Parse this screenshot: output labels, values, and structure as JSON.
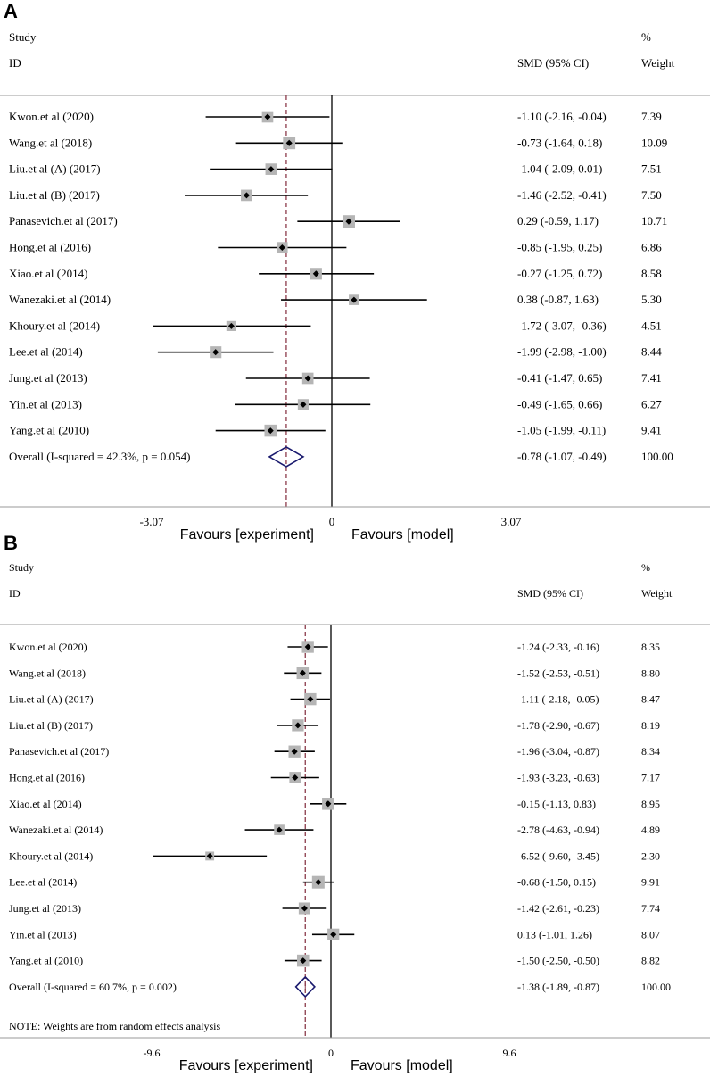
{
  "panels": [
    {
      "letter": "A",
      "headers": {
        "study": "Study",
        "id": "ID",
        "smd": "SMD (95% CI)",
        "pct": "%",
        "weight": "Weight"
      },
      "note": "",
      "axis": {
        "left_label": "-3.07",
        "zero_label": "0",
        "right_label": "3.07",
        "favours_left": "Favours [experiment]",
        "favours_right": "Favours [model]"
      },
      "chart_data": {
        "type": "forest",
        "title": "A",
        "xlim": [
          -3.07,
          3.07
        ],
        "ticks": [
          -3.07,
          0,
          3.07
        ],
        "pooled_line": -0.78,
        "studies": [
          {
            "label": "Kwon.et al (2020)",
            "est": -1.1,
            "lo": -2.16,
            "hi": -0.04,
            "ci_text": "-1.10 (-2.16, -0.04)",
            "weight": 7.39,
            "weight_text": "7.39"
          },
          {
            "label": "Wang.et al (2018)",
            "est": -0.73,
            "lo": -1.64,
            "hi": 0.18,
            "ci_text": "-0.73 (-1.64, 0.18)",
            "weight": 10.09,
            "weight_text": "10.09"
          },
          {
            "label": "Liu.et al (A) (2017)",
            "est": -1.04,
            "lo": -2.09,
            "hi": 0.01,
            "ci_text": "-1.04 (-2.09, 0.01)",
            "weight": 7.51,
            "weight_text": "7.51"
          },
          {
            "label": "Liu.et al (B) (2017)",
            "est": -1.46,
            "lo": -2.52,
            "hi": -0.41,
            "ci_text": "-1.46 (-2.52, -0.41)",
            "weight": 7.5,
            "weight_text": "7.50"
          },
          {
            "label": "Panasevich.et al (2017)",
            "est": 0.29,
            "lo": -0.59,
            "hi": 1.17,
            "ci_text": "0.29 (-0.59, 1.17)",
            "weight": 10.71,
            "weight_text": "10.71"
          },
          {
            "label": "Hong.et al (2016)",
            "est": -0.85,
            "lo": -1.95,
            "hi": 0.25,
            "ci_text": "-0.85 (-1.95, 0.25)",
            "weight": 6.86,
            "weight_text": "6.86"
          },
          {
            "label": "Xiao.et al (2014)",
            "est": -0.27,
            "lo": -1.25,
            "hi": 0.72,
            "ci_text": "-0.27 (-1.25, 0.72)",
            "weight": 8.58,
            "weight_text": "8.58"
          },
          {
            "label": "Wanezaki.et al (2014)",
            "est": 0.38,
            "lo": -0.87,
            "hi": 1.63,
            "ci_text": "0.38 (-0.87, 1.63)",
            "weight": 5.3,
            "weight_text": "5.30"
          },
          {
            "label": "Khoury.et al (2014)",
            "est": -1.72,
            "lo": -3.07,
            "hi": -0.36,
            "ci_text": "-1.72 (-3.07, -0.36)",
            "weight": 4.51,
            "weight_text": "4.51"
          },
          {
            "label": "Lee.et al (2014)",
            "est": -1.99,
            "lo": -2.98,
            "hi": -1.0,
            "ci_text": "-1.99 (-2.98, -1.00)",
            "weight": 8.44,
            "weight_text": "8.44"
          },
          {
            "label": "Jung.et al (2013)",
            "est": -0.41,
            "lo": -1.47,
            "hi": 0.65,
            "ci_text": "-0.41 (-1.47, 0.65)",
            "weight": 7.41,
            "weight_text": "7.41"
          },
          {
            "label": "Yin.et al (2013)",
            "est": -0.49,
            "lo": -1.65,
            "hi": 0.66,
            "ci_text": "-0.49 (-1.65, 0.66)",
            "weight": 6.27,
            "weight_text": "6.27"
          },
          {
            "label": "Yang.et al (2010)",
            "est": -1.05,
            "lo": -1.99,
            "hi": -0.11,
            "ci_text": "-1.05 (-1.99, -0.11)",
            "weight": 9.41,
            "weight_text": "9.41"
          }
        ],
        "overall": {
          "label": "Overall  (I-squared = 42.3%, p = 0.054)",
          "est": -0.78,
          "lo": -1.07,
          "hi": -0.49,
          "ci_text": "-0.78 (-1.07, -0.49)",
          "weight_text": "100.00"
        }
      }
    },
    {
      "letter": "B",
      "headers": {
        "study": "Study",
        "id": "ID",
        "smd": "SMD (95% CI)",
        "pct": "%",
        "weight": "Weight"
      },
      "note": "NOTE: Weights are from random effects analysis",
      "axis": {
        "left_label": "-9.6",
        "zero_label": "0",
        "right_label": "9.6",
        "favours_left": "Favours [experiment]",
        "favours_right": "Favours [model]"
      },
      "chart_data": {
        "type": "forest",
        "title": "B",
        "xlim": [
          -9.6,
          9.6
        ],
        "ticks": [
          -9.6,
          0,
          9.6
        ],
        "pooled_line": -1.38,
        "studies": [
          {
            "label": "Kwon.et al (2020)",
            "est": -1.24,
            "lo": -2.33,
            "hi": -0.16,
            "ci_text": "-1.24 (-2.33, -0.16)",
            "weight": 8.35,
            "weight_text": "8.35"
          },
          {
            "label": "Wang.et al (2018)",
            "est": -1.52,
            "lo": -2.53,
            "hi": -0.51,
            "ci_text": "-1.52 (-2.53, -0.51)",
            "weight": 8.8,
            "weight_text": "8.80"
          },
          {
            "label": "Liu.et al (A) (2017)",
            "est": -1.11,
            "lo": -2.18,
            "hi": -0.05,
            "ci_text": "-1.11 (-2.18, -0.05)",
            "weight": 8.47,
            "weight_text": "8.47"
          },
          {
            "label": "Liu.et al (B) (2017)",
            "est": -1.78,
            "lo": -2.9,
            "hi": -0.67,
            "ci_text": "-1.78 (-2.90, -0.67)",
            "weight": 8.19,
            "weight_text": "8.19"
          },
          {
            "label": "Panasevich.et al (2017)",
            "est": -1.96,
            "lo": -3.04,
            "hi": -0.87,
            "ci_text": "-1.96 (-3.04, -0.87)",
            "weight": 8.34,
            "weight_text": "8.34"
          },
          {
            "label": "Hong.et al (2016)",
            "est": -1.93,
            "lo": -3.23,
            "hi": -0.63,
            "ci_text": "-1.93 (-3.23, -0.63)",
            "weight": 7.17,
            "weight_text": "7.17"
          },
          {
            "label": "Xiao.et al (2014)",
            "est": -0.15,
            "lo": -1.13,
            "hi": 0.83,
            "ci_text": "-0.15 (-1.13, 0.83)",
            "weight": 8.95,
            "weight_text": "8.95"
          },
          {
            "label": "Wanezaki.et al (2014)",
            "est": -2.78,
            "lo": -4.63,
            "hi": -0.94,
            "ci_text": "-2.78 (-4.63, -0.94)",
            "weight": 4.89,
            "weight_text": "4.89"
          },
          {
            "label": "Khoury.et al (2014)",
            "est": -6.52,
            "lo": -9.6,
            "hi": -3.45,
            "ci_text": "-6.52 (-9.60, -3.45)",
            "weight": 2.3,
            "weight_text": "2.30"
          },
          {
            "label": "Lee.et al (2014)",
            "est": -0.68,
            "lo": -1.5,
            "hi": 0.15,
            "ci_text": "-0.68 (-1.50, 0.15)",
            "weight": 9.91,
            "weight_text": "9.91"
          },
          {
            "label": "Jung.et al (2013)",
            "est": -1.42,
            "lo": -2.61,
            "hi": -0.23,
            "ci_text": "-1.42 (-2.61, -0.23)",
            "weight": 7.74,
            "weight_text": "7.74"
          },
          {
            "label": "Yin.et al (2013)",
            "est": 0.13,
            "lo": -1.01,
            "hi": 1.26,
            "ci_text": "0.13 (-1.01, 1.26)",
            "weight": 8.07,
            "weight_text": "8.07"
          },
          {
            "label": "Yang.et al (2010)",
            "est": -1.5,
            "lo": -2.5,
            "hi": -0.5,
            "ci_text": "-1.50 (-2.50, -0.50)",
            "weight": 8.82,
            "weight_text": "8.82"
          }
        ],
        "overall": {
          "label": "Overall  (I-squared = 60.7%, p = 0.002)",
          "est": -1.38,
          "lo": -1.89,
          "hi": -0.87,
          "ci_text": "-1.38 (-1.89, -0.87)",
          "weight_text": "100.00"
        }
      }
    }
  ],
  "colors": {
    "pooled_line": "#8b3a4a",
    "diamond": "#1a1a6e",
    "box": "#b5b5b5",
    "ink": "#000000",
    "rule": "#999999"
  }
}
